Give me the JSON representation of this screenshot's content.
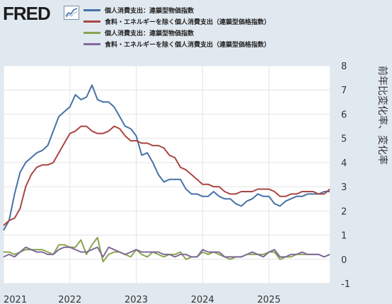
{
  "header": {
    "logo_text": "FRED"
  },
  "colors": {
    "s1": "#4572a7",
    "s2": "#aa4643",
    "s3": "#89a54e",
    "s4": "#80699b"
  },
  "chart_data": {
    "type": "line",
    "title": "",
    "xlabel": "",
    "ylabel": "前年比変化率、変化率",
    "ylim": [
      -1,
      8
    ],
    "yticks": [
      -1,
      0,
      1,
      2,
      3,
      4,
      5,
      6,
      7,
      8
    ],
    "xlim": [
      "2021-01",
      "2025-12"
    ],
    "xticks": [
      {
        "label": "2021",
        "date": "2021-01"
      },
      {
        "label": "2022",
        "date": "2022-01"
      },
      {
        "label": "2023",
        "date": "2023-01"
      },
      {
        "label": "2024",
        "date": "2024-01"
      },
      {
        "label": "2025",
        "date": "2025-01"
      }
    ],
    "grid": true,
    "legend_position": "top-left",
    "x": [
      "2021-01",
      "2021-02",
      "2021-03",
      "2021-04",
      "2021-05",
      "2021-06",
      "2021-07",
      "2021-08",
      "2021-09",
      "2021-10",
      "2021-11",
      "2021-12",
      "2022-01",
      "2022-02",
      "2022-03",
      "2022-04",
      "2022-05",
      "2022-06",
      "2022-07",
      "2022-08",
      "2022-09",
      "2022-10",
      "2022-11",
      "2022-12",
      "2023-01",
      "2023-02",
      "2023-03",
      "2023-04",
      "2023-05",
      "2023-06",
      "2023-07",
      "2023-08",
      "2023-09",
      "2023-10",
      "2023-11",
      "2023-12",
      "2024-01",
      "2024-02",
      "2024-03",
      "2024-04",
      "2024-05",
      "2024-06",
      "2024-07",
      "2024-08",
      "2024-09",
      "2024-10",
      "2024-11",
      "2024-12",
      "2025-01",
      "2025-02",
      "2025-03",
      "2025-04",
      "2025-05",
      "2025-06",
      "2025-07",
      "2025-08",
      "2025-09",
      "2025-10",
      "2025-11",
      "2025-12"
    ],
    "series": [
      {
        "name": "個人消費支出：連鎖型物価指数",
        "color_key": "s1",
        "values": [
          1.2,
          1.6,
          2.7,
          3.6,
          4.0,
          4.2,
          4.4,
          4.5,
          4.7,
          5.3,
          5.9,
          6.1,
          6.3,
          6.8,
          6.6,
          6.7,
          7.2,
          6.6,
          6.5,
          6.5,
          6.3,
          5.9,
          5.5,
          5.4,
          5.1,
          4.3,
          4.4,
          4.0,
          3.5,
          3.2,
          3.3,
          3.3,
          3.3,
          2.9,
          2.7,
          2.7,
          2.6,
          2.6,
          2.8,
          2.6,
          2.5,
          2.5,
          2.3,
          2.2,
          2.4,
          2.5,
          2.7,
          2.6,
          2.6,
          2.3,
          2.2,
          2.4,
          2.5,
          2.6,
          2.6,
          2.7,
          2.7,
          2.7,
          2.8,
          2.8
        ]
      },
      {
        "name": "食料・エネルギーを除く個人消費支出（連鎖型価格指数）",
        "color_key": "s2",
        "values": [
          1.4,
          1.6,
          1.7,
          2.1,
          3.0,
          3.5,
          3.8,
          3.9,
          3.9,
          4.0,
          4.4,
          4.8,
          5.2,
          5.3,
          5.5,
          5.5,
          5.3,
          5.2,
          5.2,
          5.3,
          5.5,
          5.4,
          5.1,
          4.9,
          4.9,
          4.8,
          4.8,
          4.7,
          4.7,
          4.6,
          4.3,
          4.2,
          3.8,
          3.7,
          3.5,
          3.3,
          3.1,
          3.1,
          3.0,
          3.0,
          2.8,
          2.7,
          2.7,
          2.8,
          2.8,
          2.8,
          2.9,
          2.9,
          2.9,
          2.8,
          2.6,
          2.6,
          2.7,
          2.7,
          2.8,
          2.8,
          2.8,
          2.7,
          2.7,
          2.9
        ]
      },
      {
        "name": "個人消費支出：連鎖型物価指数",
        "color_key": "s3",
        "values": [
          0.3,
          0.3,
          0.2,
          0.3,
          0.4,
          0.4,
          0.4,
          0.4,
          0.3,
          0.2,
          0.6,
          0.6,
          0.5,
          0.5,
          0.8,
          0.2,
          0.6,
          0.9,
          -0.1,
          0.2,
          0.3,
          0.3,
          0.2,
          0.1,
          0.4,
          0.2,
          0.1,
          0.3,
          0.2,
          0.1,
          0.2,
          0.2,
          0.3,
          0.0,
          0.1,
          0.1,
          0.3,
          0.2,
          0.3,
          0.2,
          0.1,
          0.0,
          0.1,
          0.1,
          0.2,
          0.2,
          0.2,
          0.2,
          0.3,
          0.3,
          0.0,
          0.1,
          0.1,
          0.2,
          0.2,
          0.2,
          0.2,
          0.2,
          0.1,
          0.2
        ]
      },
      {
        "name": "食料・エネルギーを除く個人消費支出（連鎖型価格指数）",
        "color_key": "s4",
        "values": [
          0.1,
          0.2,
          0.1,
          0.3,
          0.5,
          0.4,
          0.3,
          0.3,
          0.2,
          0.2,
          0.4,
          0.5,
          0.5,
          0.4,
          0.3,
          0.3,
          0.4,
          0.5,
          0.1,
          0.5,
          0.4,
          0.3,
          0.2,
          0.3,
          0.4,
          0.3,
          0.3,
          0.3,
          0.3,
          0.2,
          0.2,
          0.1,
          0.2,
          0.2,
          0.1,
          0.1,
          0.4,
          0.3,
          0.3,
          0.3,
          0.1,
          0.1,
          0.1,
          0.1,
          0.2,
          0.3,
          0.2,
          0.1,
          0.3,
          0.4,
          0.1,
          0.1,
          0.2,
          0.2,
          0.3,
          0.2,
          0.2,
          0.2,
          0.1,
          0.2
        ]
      }
    ]
  }
}
